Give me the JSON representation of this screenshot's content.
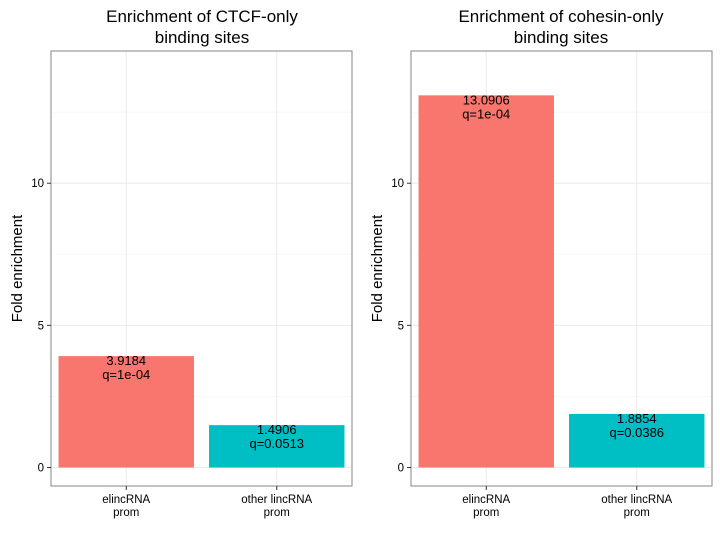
{
  "chart_data": [
    {
      "type": "bar",
      "title": "Enrichment of CTCF-only\nbinding sites",
      "ylabel": "Fold enrichment",
      "xlabel": "",
      "categories": [
        "elincRNA\nprom",
        "other lincRNA\nprom"
      ],
      "values": [
        3.9184,
        1.4906
      ],
      "data_labels": [
        "3.9184\nq=1e-04",
        "1.4906\nq=0.0513"
      ],
      "colors": [
        "#F8766D",
        "#00BFC4"
      ],
      "ylim": [
        -0.65,
        14.65
      ],
      "yticks": [
        0,
        5,
        10
      ],
      "grid": true,
      "legend": "none"
    },
    {
      "type": "bar",
      "title": "Enrichment of cohesin-only\nbinding sites",
      "ylabel": "Fold enrichment",
      "xlabel": "",
      "categories": [
        "elincRNA\nprom",
        "other lincRNA\nprom"
      ],
      "values": [
        13.0906,
        1.8854
      ],
      "data_labels": [
        "13.0906\nq=1e-04",
        "1.8854\nq=0.0386"
      ],
      "colors": [
        "#F8766D",
        "#00BFC4"
      ],
      "ylim": [
        -0.65,
        14.65
      ],
      "yticks": [
        0,
        5,
        10
      ],
      "grid": true,
      "legend": "none"
    }
  ]
}
